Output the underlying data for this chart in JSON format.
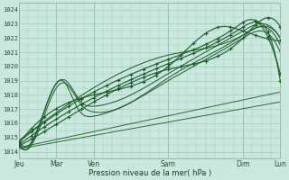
{
  "title": "",
  "xlabel": "Pression niveau de la mer( hPa )",
  "ylabel": "",
  "bg_color": "#cce8de",
  "grid_color": "#99ccbb",
  "line_color": "#1a5c28",
  "ylim": [
    1013.5,
    1024.5
  ],
  "xlim": [
    0,
    168
  ],
  "yticks": [
    1014,
    1015,
    1016,
    1017,
    1018,
    1019,
    1020,
    1021,
    1022,
    1023,
    1024
  ],
  "xtick_positions": [
    0,
    24,
    48,
    96,
    144,
    168
  ],
  "xtick_labels": [
    "Jeu",
    "Mar",
    "Ven",
    "Sam",
    "Dim",
    "Lun"
  ],
  "figsize": [
    3.2,
    2.0
  ],
  "dpi": 100
}
